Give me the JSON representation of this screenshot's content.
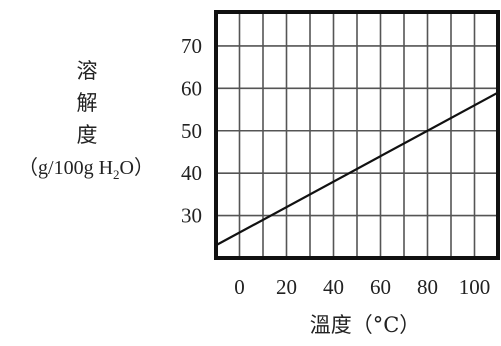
{
  "chart_data": {
    "type": "line",
    "ylabel_chars": [
      "溶",
      "解",
      "度"
    ],
    "ylabel_unit": {
      "open": "（",
      "pre": "g/100g H",
      "sub": "2",
      "post": "O",
      "close": "）"
    },
    "xlabel": "溫度（°C）",
    "x_ticks": [
      0,
      20,
      40,
      60,
      80,
      100
    ],
    "y_ticks": [
      30,
      40,
      50,
      60,
      70
    ],
    "x_range": [
      -10,
      110
    ],
    "y_range": [
      20,
      78
    ],
    "grid": true,
    "series": [
      {
        "x": [
          -10,
          110
        ],
        "y": [
          23,
          59
        ]
      }
    ],
    "colors": {
      "line": "#111111",
      "grid": "#555555",
      "frame": "#111111"
    }
  }
}
